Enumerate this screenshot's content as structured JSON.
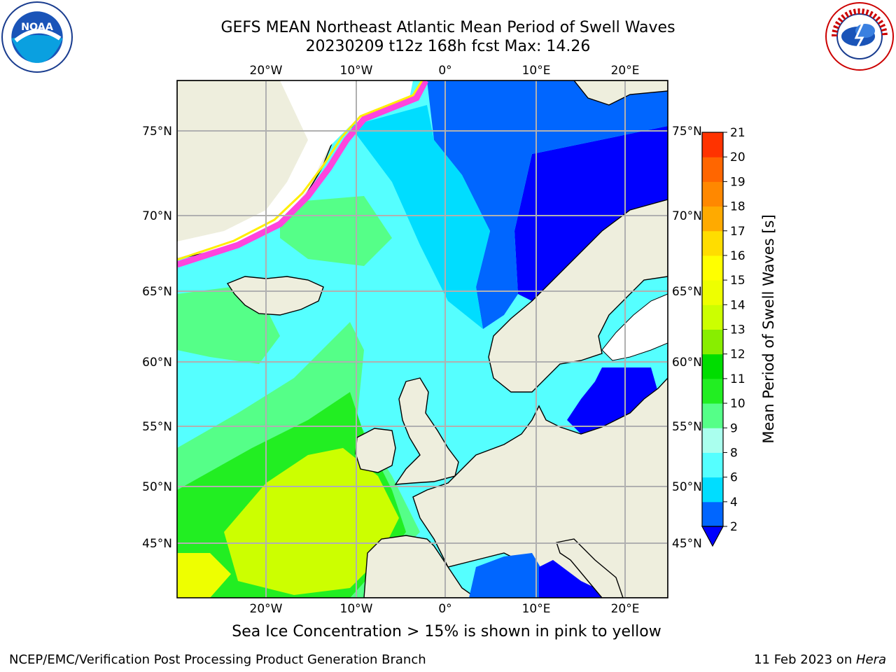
{
  "title": {
    "line1": "GEFS MEAN Northeast Atlantic Mean Period of Swell Waves",
    "line2": "20230209 t12z 168h fcst   Max: 14.26"
  },
  "map": {
    "lon_labels": [
      "20°W",
      "10°W",
      "0°",
      "10°E",
      "20°E"
    ],
    "lat_labels": [
      "75°N",
      "70°N",
      "65°N",
      "60°N",
      "55°N",
      "50°N",
      "45°N"
    ],
    "colors": {
      "ocean_low": "#0000ff",
      "land": "#eeeedd",
      "grid": "#b0b0b0",
      "coast": "#000000"
    }
  },
  "colorbar": {
    "label": "Mean Period of Swell Waves [s]",
    "ticks": [
      "2",
      "4",
      "6",
      "8",
      "9",
      "10",
      "11",
      "12",
      "13",
      "14",
      "15",
      "16",
      "17",
      "18",
      "19",
      "20",
      "21"
    ],
    "colors": [
      "#0066ff",
      "#00ddff",
      "#55ffff",
      "#aaffee",
      "#55ff88",
      "#22ee22",
      "#00dd00",
      "#88ee00",
      "#ccff00",
      "#eeff00",
      "#ffff00",
      "#ffdd00",
      "#ffaa00",
      "#ff8800",
      "#ff6600",
      "#ff3300",
      "#ff0000"
    ],
    "under_color": "#0000ff"
  },
  "note": "Sea Ice Concentration > 15% is shown in pink to yellow",
  "footer": {
    "left": "NCEP/EMC/Verification Post Processing Product Generation Branch",
    "date": "11 Feb 2023 on ",
    "machine": "Hera"
  },
  "logos": {
    "left": "noaa-logo",
    "right": "nws-logo"
  }
}
